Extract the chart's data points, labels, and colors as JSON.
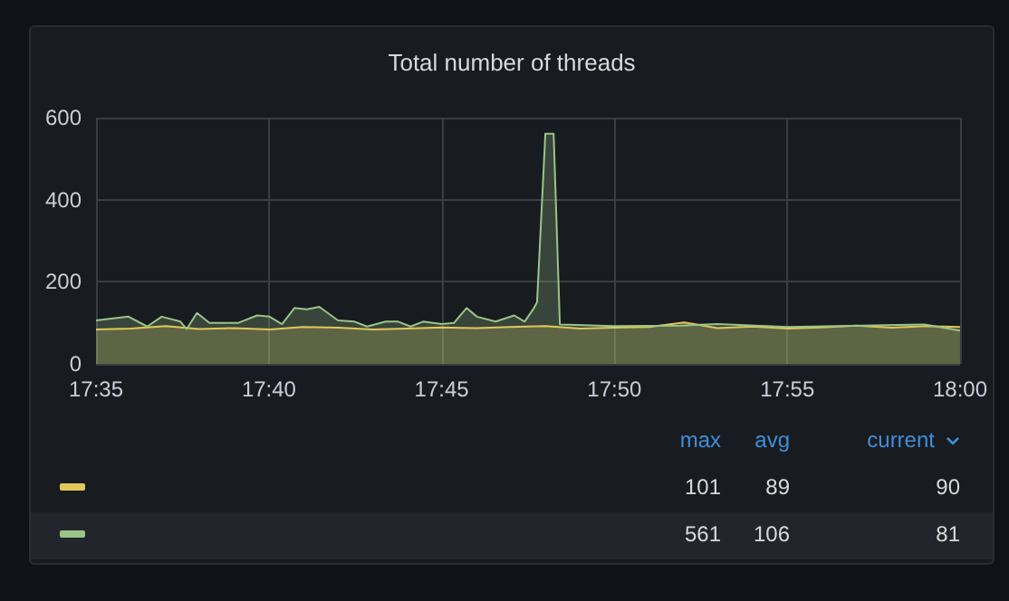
{
  "chart_data": {
    "type": "area",
    "title": "Total number of threads",
    "xlim": [
      17.5833,
      18
    ],
    "xticks": [
      {
        "value": 17.5833,
        "label": "17:35"
      },
      {
        "value": 17.6667,
        "label": "17:40"
      },
      {
        "value": 17.75,
        "label": "17:45"
      },
      {
        "value": 17.8333,
        "label": "17:50"
      },
      {
        "value": 17.9167,
        "label": "17:55"
      },
      {
        "value": 18,
        "label": "18:00"
      }
    ],
    "ylim": [
      0,
      600
    ],
    "yticks": [
      0,
      200,
      400,
      600
    ],
    "grid": true,
    "series": [
      {
        "color": "#e0c85a",
        "x": [
          17.5833,
          17.6,
          17.617,
          17.633,
          17.65,
          17.667,
          17.683,
          17.7,
          17.717,
          17.733,
          17.75,
          17.767,
          17.783,
          17.8,
          17.817,
          17.833,
          17.85,
          17.867,
          17.883,
          17.9,
          17.917,
          17.933,
          17.95,
          17.967,
          17.983,
          18
        ],
        "values": [
          84,
          86,
          92,
          85,
          87,
          84,
          90,
          88,
          84,
          86,
          89,
          87,
          90,
          92,
          86,
          88,
          90,
          101,
          87,
          91,
          86,
          89,
          93,
          88,
          92,
          90
        ]
      },
      {
        "color": "#9ac48a",
        "x": [
          17.5833,
          17.599,
          17.608,
          17.615,
          17.624,
          17.627,
          17.632,
          17.638,
          17.652,
          17.661,
          17.667,
          17.673,
          17.679,
          17.685,
          17.691,
          17.7,
          17.708,
          17.714,
          17.723,
          17.729,
          17.735,
          17.741,
          17.75,
          17.756,
          17.762,
          17.767,
          17.776,
          17.785,
          17.79,
          17.794,
          17.796,
          17.8,
          17.804,
          17.807,
          17.833,
          17.865,
          17.883,
          17.917,
          17.953,
          17.983,
          18
        ],
        "values": [
          106,
          115,
          91,
          115,
          103,
          85,
          124,
          100,
          100,
          118,
          115,
          97,
          136,
          133,
          139,
          106,
          103,
          91,
          103,
          103,
          91,
          103,
          97,
          100,
          136,
          115,
          103,
          118,
          103,
          132,
          150,
          561,
          561,
          96,
          92,
          93,
          97,
          90,
          93,
          96,
          81
        ]
      }
    ],
    "annotations": [
      "max",
      "avg",
      "current",
      "101",
      "89",
      "90",
      "561",
      "106",
      "81"
    ]
  }
}
